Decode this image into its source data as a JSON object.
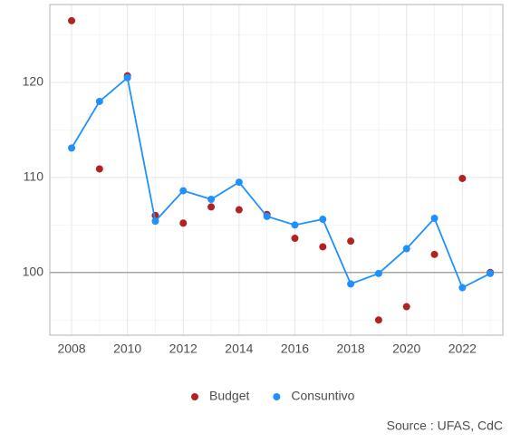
{
  "chart_data": {
    "type": "scatter",
    "x": [
      2008,
      2009,
      2010,
      2011,
      2012,
      2013,
      2014,
      2015,
      2016,
      2017,
      2018,
      2019,
      2020,
      2021,
      2022,
      2023
    ],
    "series": [
      {
        "name": "Budget",
        "color": "#b22222",
        "mode": "markers",
        "values": [
          126.5,
          110.9,
          120.7,
          106.0,
          105.2,
          106.9,
          106.6,
          106.1,
          103.6,
          102.7,
          103.3,
          95.0,
          96.4,
          101.9,
          109.9,
          100.0
        ]
      },
      {
        "name": "Consuntivo",
        "color": "#1e90ff",
        "mode": "lines+markers",
        "values": [
          113.1,
          118.0,
          120.5,
          105.4,
          108.6,
          107.7,
          109.5,
          105.9,
          105.0,
          105.6,
          98.8,
          99.9,
          102.5,
          105.7,
          98.4,
          99.9
        ]
      }
    ],
    "xlim": [
      2007.22,
      2023.45
    ],
    "xticks": [
      2008,
      2010,
      2012,
      2014,
      2016,
      2018,
      2020,
      2022
    ],
    "xminorticks": [
      2009,
      2011,
      2013,
      2015,
      2017,
      2019,
      2021,
      2023
    ],
    "ylim": [
      93.4,
      128.2
    ],
    "yticks": [
      100,
      110,
      120
    ],
    "yminorticks": [
      95,
      105,
      115,
      125
    ],
    "reference_line": 100,
    "grid": true,
    "legend": "bottom",
    "caption": "Source : UFAS, CdC"
  }
}
